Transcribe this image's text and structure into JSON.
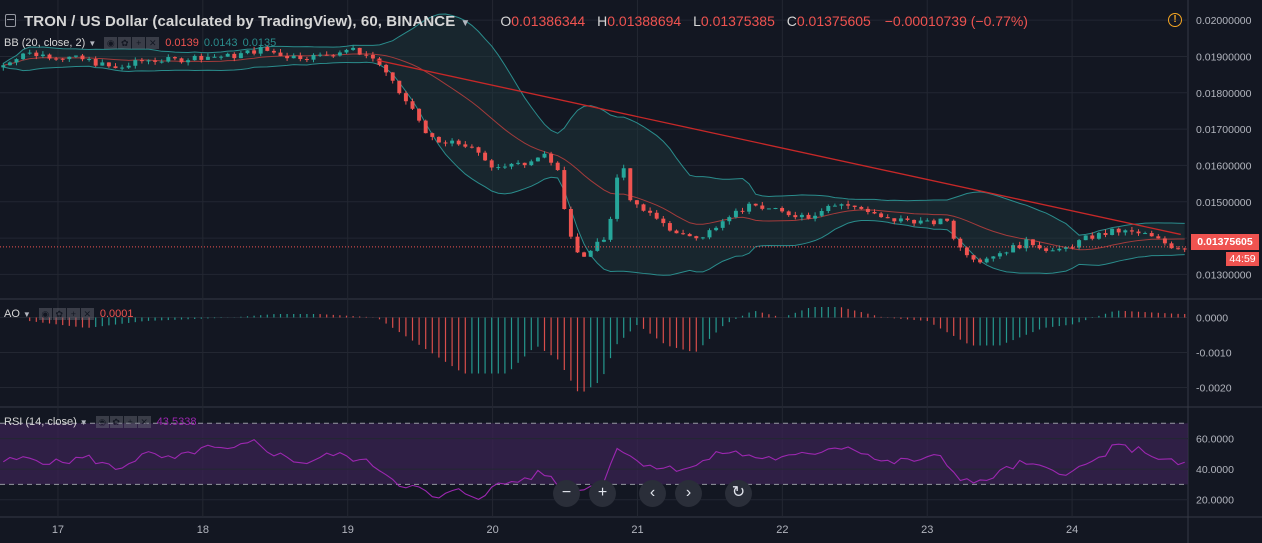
{
  "header": {
    "title": "TRON / US Dollar (calculated by TradingView), 60, BINANCE",
    "open_label": "O",
    "open": "0.01386344",
    "high_label": "H",
    "high": "0.01388694",
    "low_label": "L",
    "low": "0.01375385",
    "close_label": "C",
    "close": "0.01375605",
    "change": "−0.00010739 (−0.77%)"
  },
  "indicators": {
    "bb": {
      "name": "BB (20, close, 2)",
      "v1": "0.0139",
      "v2": "0.0143",
      "v3": "0.0135"
    },
    "ao": {
      "name": "AO",
      "v1": "0.0001"
    },
    "rsi": {
      "name": "RSI (14, close)",
      "v1": "43.5338"
    }
  },
  "price_tag": "0.01375605",
  "countdown": "44:59",
  "nav_icons": [
    "minus-icon",
    "plus-icon",
    "chevron-left-icon",
    "chevron-right-icon",
    "reset-icon"
  ],
  "chart_data": {
    "type": "candlestick",
    "price_axis": {
      "ticks": [
        "0.02000000",
        "0.01900000",
        "0.01800000",
        "0.01700000",
        "0.01600000",
        "0.01500000",
        "0.01400000",
        "0.01300000"
      ],
      "range": [
        0.01235,
        0.0205
      ]
    },
    "ao_axis": {
      "ticks": [
        "0.0000",
        "-0.0010",
        "-0.0020"
      ],
      "range": [
        -0.0025,
        0.0005
      ]
    },
    "rsi_axis": {
      "ticks": [
        "60.0000",
        "40.0000",
        "20.0000"
      ],
      "range": [
        10,
        80
      ],
      "band": [
        30,
        70
      ]
    },
    "x_ticks": [
      "17",
      "18",
      "19",
      "20",
      "21",
      "22",
      "23",
      "24"
    ],
    "x_range": [
      16.6,
      24.8
    ],
    "price_points": [
      [
        16.6,
        0.0187
      ],
      [
        16.75,
        0.0191
      ],
      [
        17.0,
        0.019
      ],
      [
        17.2,
        0.0189
      ],
      [
        17.4,
        0.01865
      ],
      [
        17.6,
        0.0189
      ],
      [
        17.8,
        0.0189
      ],
      [
        18.0,
        0.019
      ],
      [
        18.2,
        0.019
      ],
      [
        18.4,
        0.0192
      ],
      [
        18.6,
        0.019
      ],
      [
        18.8,
        0.019
      ],
      [
        19.0,
        0.0192
      ],
      [
        19.1,
        0.0191
      ],
      [
        19.2,
        0.0189
      ],
      [
        19.3,
        0.0183
      ],
      [
        19.45,
        0.0175
      ],
      [
        19.6,
        0.0166
      ],
      [
        19.8,
        0.0166
      ],
      [
        20.0,
        0.016
      ],
      [
        20.2,
        0.016
      ],
      [
        20.35,
        0.0164
      ],
      [
        20.45,
        0.0158
      ],
      [
        20.5,
        0.0146
      ],
      [
        20.6,
        0.0134
      ],
      [
        20.7,
        0.0138
      ],
      [
        20.8,
        0.014
      ],
      [
        20.85,
        0.0156
      ],
      [
        20.9,
        0.0161
      ],
      [
        20.95,
        0.015
      ],
      [
        21.05,
        0.0148
      ],
      [
        21.15,
        0.0144
      ],
      [
        21.3,
        0.0141
      ],
      [
        21.45,
        0.014
      ],
      [
        21.6,
        0.0146
      ],
      [
        21.8,
        0.0149
      ],
      [
        22.0,
        0.0147
      ],
      [
        22.2,
        0.0146
      ],
      [
        22.3,
        0.0149
      ],
      [
        22.5,
        0.0149
      ],
      [
        22.7,
        0.0145
      ],
      [
        22.9,
        0.0145
      ],
      [
        23.0,
        0.0144
      ],
      [
        23.15,
        0.0145
      ],
      [
        23.2,
        0.0138
      ],
      [
        23.35,
        0.0134
      ],
      [
        23.5,
        0.0136
      ],
      [
        23.7,
        0.0139
      ],
      [
        23.9,
        0.0136
      ],
      [
        24.1,
        0.014
      ],
      [
        24.3,
        0.0142
      ],
      [
        24.5,
        0.0141
      ],
      [
        24.7,
        0.01376
      ]
    ],
    "trendline": [
      [
        19.2,
        0.0189
      ],
      [
        24.75,
        0.0141
      ]
    ],
    "ao_points": [
      [
        16.8,
        -0.0001
      ],
      [
        17.2,
        -0.0003
      ],
      [
        17.6,
        -0.0001
      ],
      [
        18.2,
        0.0
      ],
      [
        18.5,
        0.0001
      ],
      [
        18.8,
        0.0001
      ],
      [
        19.2,
        0.0
      ],
      [
        19.5,
        -0.0008
      ],
      [
        19.8,
        -0.0016
      ],
      [
        20.1,
        -0.0016
      ],
      [
        20.3,
        -0.0008
      ],
      [
        20.45,
        -0.0012
      ],
      [
        20.6,
        -0.0022
      ],
      [
        20.75,
        -0.0018
      ],
      [
        20.85,
        -0.0008
      ],
      [
        21.0,
        -0.0002
      ],
      [
        21.2,
        -0.0008
      ],
      [
        21.4,
        -0.001
      ],
      [
        21.6,
        -0.0002
      ],
      [
        21.8,
        0.0002
      ],
      [
        22.0,
        0.0
      ],
      [
        22.2,
        0.0003
      ],
      [
        22.4,
        0.0003
      ],
      [
        22.7,
        0.0
      ],
      [
        23.0,
        -0.0001
      ],
      [
        23.3,
        -0.0008
      ],
      [
        23.5,
        -0.0008
      ],
      [
        23.8,
        -0.0003
      ],
      [
        24.0,
        -0.0002
      ],
      [
        24.3,
        0.0002
      ],
      [
        24.75,
        0.0001
      ]
    ],
    "rsi_points": [
      [
        16.6,
        45
      ],
      [
        16.8,
        47
      ],
      [
        17.0,
        44
      ],
      [
        17.2,
        48
      ],
      [
        17.4,
        40
      ],
      [
        17.6,
        50
      ],
      [
        17.8,
        46
      ],
      [
        18.0,
        54
      ],
      [
        18.2,
        52
      ],
      [
        18.35,
        58
      ],
      [
        18.5,
        50
      ],
      [
        18.7,
        44
      ],
      [
        18.9,
        50
      ],
      [
        19.05,
        47
      ],
      [
        19.2,
        42
      ],
      [
        19.35,
        31
      ],
      [
        19.5,
        27
      ],
      [
        19.6,
        20
      ],
      [
        19.75,
        26
      ],
      [
        19.9,
        22
      ],
      [
        20.05,
        30
      ],
      [
        20.2,
        33
      ],
      [
        20.35,
        38
      ],
      [
        20.45,
        30
      ],
      [
        20.55,
        22
      ],
      [
        20.65,
        30
      ],
      [
        20.75,
        28
      ],
      [
        20.85,
        55
      ],
      [
        20.95,
        48
      ],
      [
        21.05,
        44
      ],
      [
        21.2,
        40
      ],
      [
        21.4,
        42
      ],
      [
        21.6,
        52
      ],
      [
        21.8,
        48
      ],
      [
        22.0,
        47
      ],
      [
        22.2,
        50
      ],
      [
        22.35,
        55
      ],
      [
        22.5,
        54
      ],
      [
        22.7,
        44
      ],
      [
        22.9,
        46
      ],
      [
        23.1,
        48
      ],
      [
        23.2,
        36
      ],
      [
        23.35,
        30
      ],
      [
        23.5,
        38
      ],
      [
        23.65,
        44
      ],
      [
        23.8,
        40
      ],
      [
        24.0,
        38
      ],
      [
        24.15,
        45
      ],
      [
        24.3,
        55
      ],
      [
        24.5,
        52
      ],
      [
        24.65,
        45
      ],
      [
        24.75,
        43.5
      ]
    ]
  },
  "colors": {
    "up": "#26a69a",
    "down": "#ef5350",
    "bb_line": "#2a8c8c",
    "bb_mid": "#a33b3b",
    "trend": "#c62828",
    "rsi": "#9c27b0",
    "rsi_band": "#3a2352",
    "grid": "#232732"
  }
}
